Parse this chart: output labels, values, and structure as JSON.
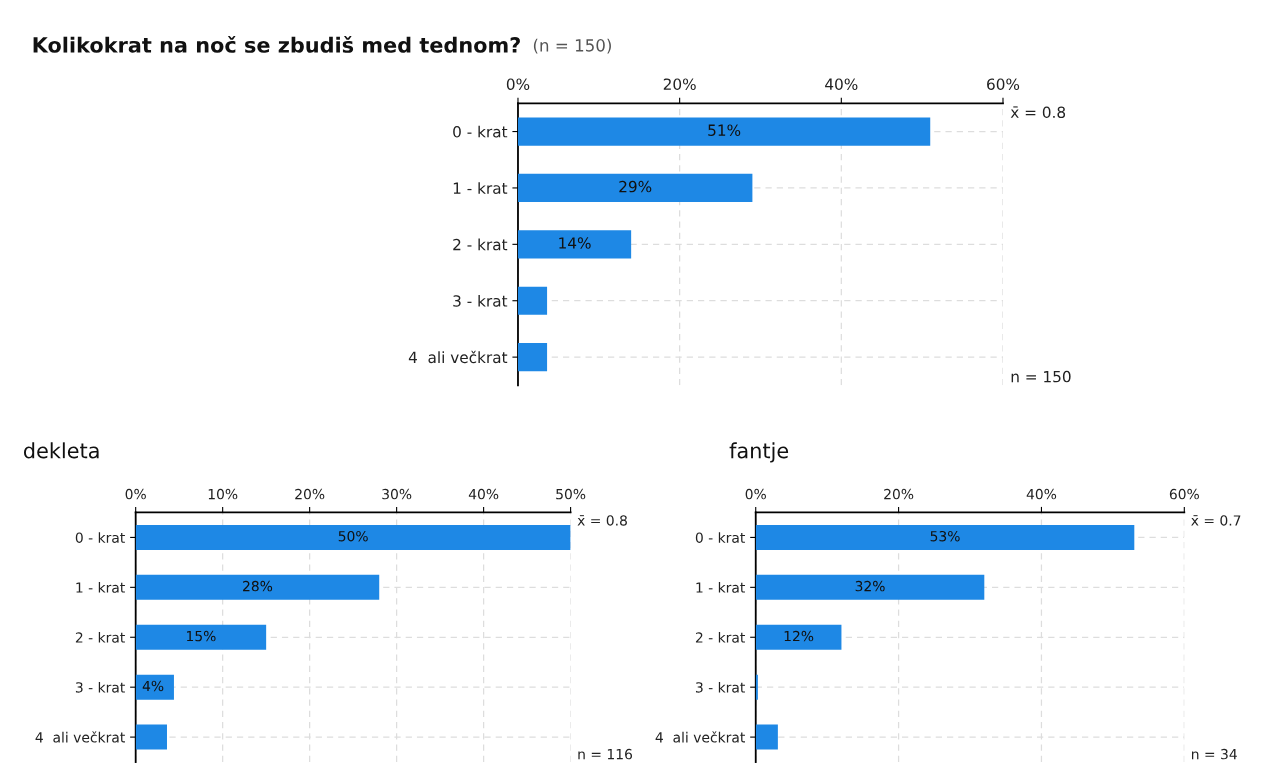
{
  "chart_data": [
    {
      "type": "bar",
      "orientation": "horizontal",
      "title": "Kolikokrat na noč se zbudiš med tednom?",
      "subtitle": "(n = 150)",
      "categories": [
        "0 - krat",
        "1 - krat",
        "2 - krat",
        "3 - krat",
        "4  ali večkrat"
      ],
      "values": [
        51,
        29,
        14,
        3.6,
        3.6
      ],
      "value_labels": [
        "51%",
        "29%",
        "14%",
        null,
        null
      ],
      "color": "#1e88e5",
      "xlim": [
        0,
        60
      ],
      "xticks": [
        {
          "value": 0,
          "label": "0%"
        },
        {
          "value": 20,
          "label": "20%"
        },
        {
          "value": 40,
          "label": "40%"
        },
        {
          "value": 60,
          "label": "60%"
        }
      ],
      "grid": true,
      "annotations": [
        "x̄ = 0.8",
        "n = 150"
      ]
    },
    {
      "type": "bar",
      "orientation": "horizontal",
      "title": "dekleta",
      "categories": [
        "0 - krat",
        "1 - krat",
        "2 - krat",
        "3 - krat",
        "4  ali večkrat"
      ],
      "values": [
        50,
        28,
        15,
        4.4,
        3.6
      ],
      "value_labels": [
        "50%",
        "28%",
        "15%",
        "4%",
        null
      ],
      "color": "#1e88e5",
      "xlim": [
        0,
        50
      ],
      "xticks": [
        {
          "value": 0,
          "label": "0%"
        },
        {
          "value": 10,
          "label": "10%"
        },
        {
          "value": 20,
          "label": "20%"
        },
        {
          "value": 30,
          "label": "30%"
        },
        {
          "value": 40,
          "label": "40%"
        },
        {
          "value": 50,
          "label": "50%"
        }
      ],
      "grid": true,
      "annotations": [
        "x̄ = 0.8",
        "n = 116"
      ]
    },
    {
      "type": "bar",
      "orientation": "horizontal",
      "title": "fantje",
      "categories": [
        "0 - krat",
        "1 - krat",
        "2 - krat",
        "3 - krat",
        "4  ali večkrat"
      ],
      "values": [
        53,
        32,
        12,
        0.3,
        3.1
      ],
      "value_labels": [
        "53%",
        "32%",
        "12%",
        null,
        null
      ],
      "color": "#1e88e5",
      "xlim": [
        0,
        60
      ],
      "xticks": [
        {
          "value": 0,
          "label": "0%"
        },
        {
          "value": 20,
          "label": "20%"
        },
        {
          "value": 40,
          "label": "40%"
        },
        {
          "value": 60,
          "label": "60%"
        }
      ],
      "grid": true,
      "annotations": [
        "x̄ = 0.7",
        "n = 34"
      ]
    }
  ]
}
